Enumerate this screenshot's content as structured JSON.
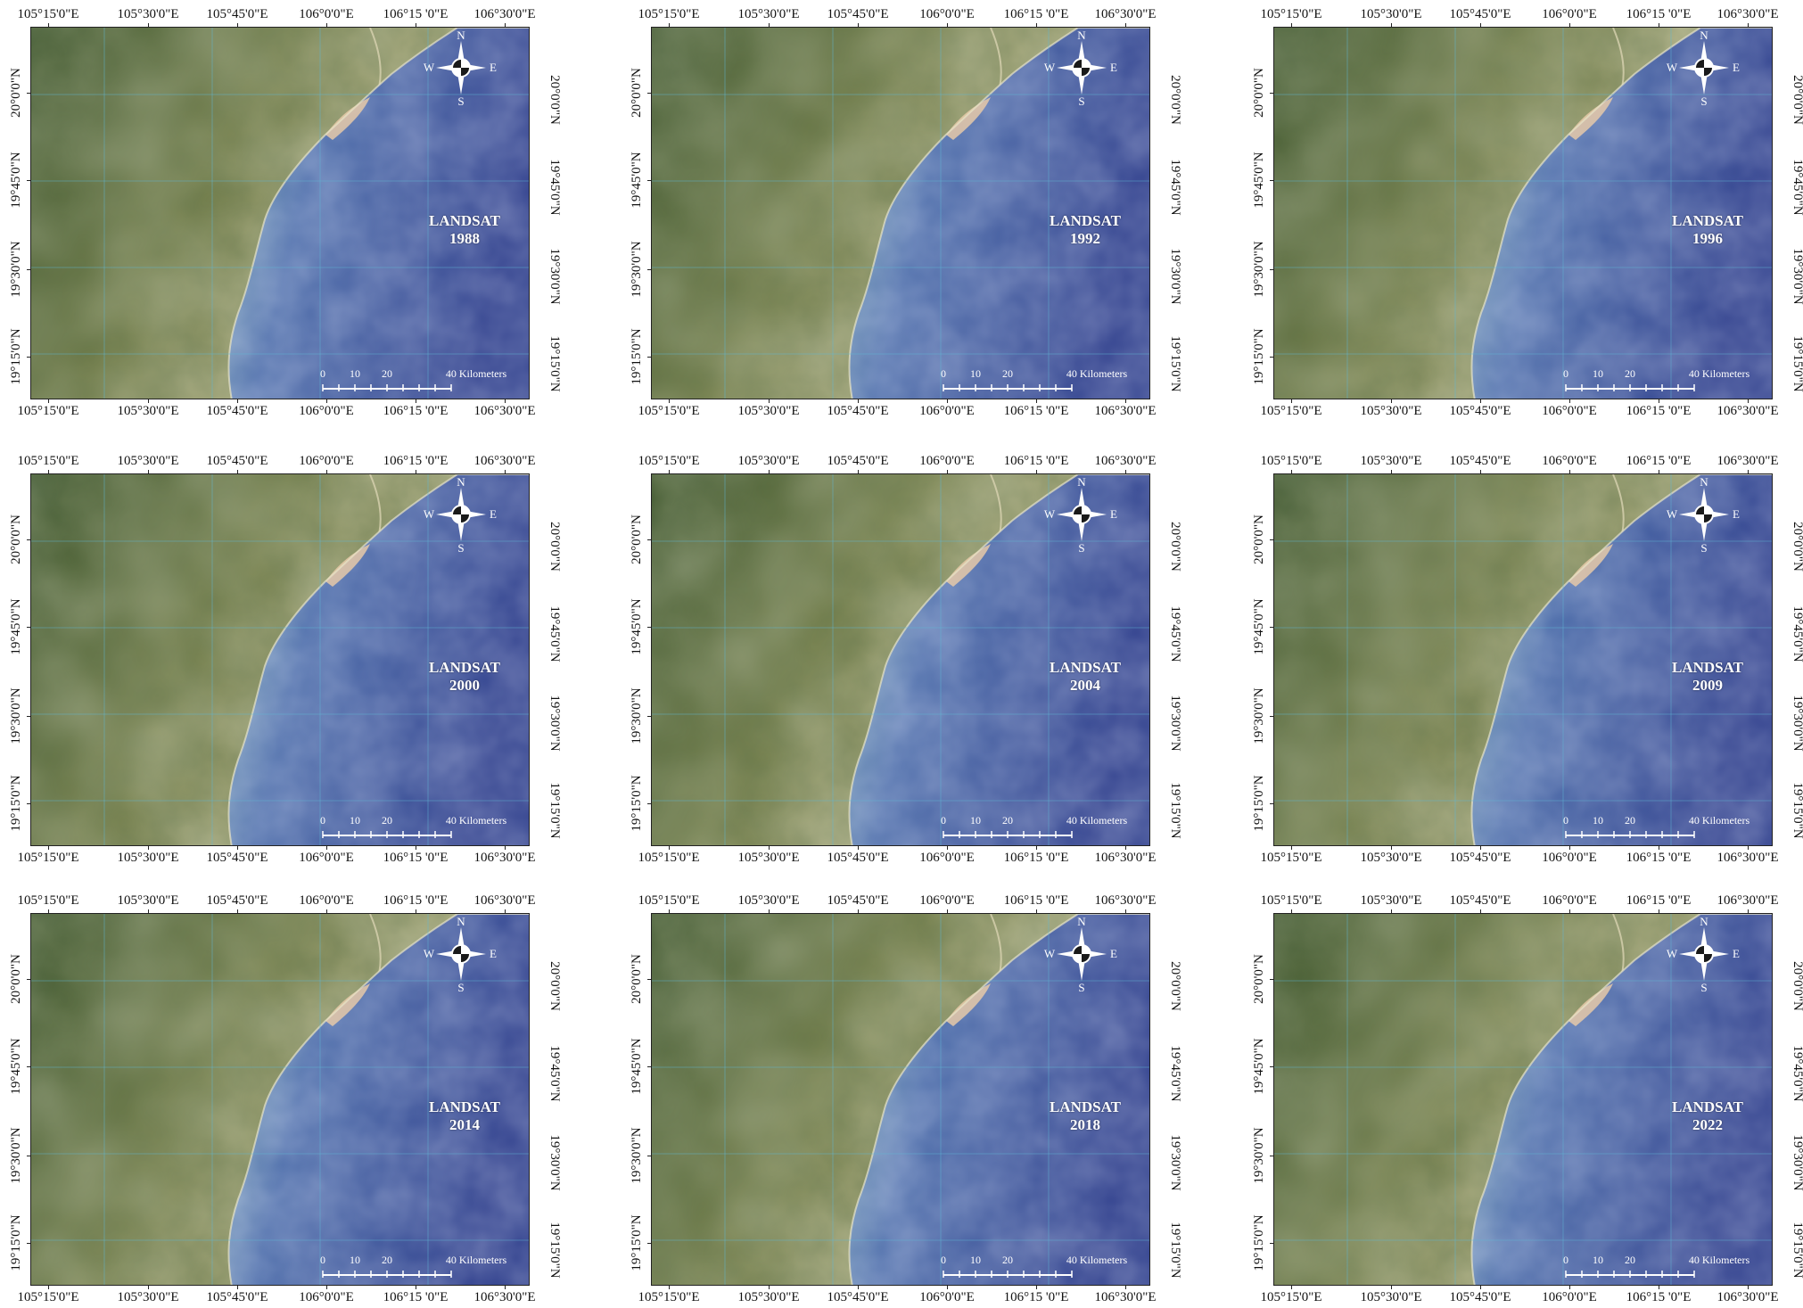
{
  "lon_labels": [
    "105°15'0\"E",
    "105°30'0\"E",
    "105°45'0\"E",
    "106°0'0\"E",
    "106°15 '0\"E",
    "106°30'0\"E"
  ],
  "lat_labels": [
    "20°0'0\"N",
    "19°45'0\"N",
    "19°30'0\"N",
    "19°15'0\"N"
  ],
  "compass": {
    "n": "N",
    "s": "S",
    "e": "E",
    "w": "W"
  },
  "scale": {
    "ticks": [
      "0",
      "10",
      "20"
    ],
    "end_label": "40 Kilometers"
  },
  "panels": [
    {
      "sensor": "LANDSAT",
      "year": "1988"
    },
    {
      "sensor": "LANDSAT",
      "year": "1992"
    },
    {
      "sensor": "LANDSAT",
      "year": "1996"
    },
    {
      "sensor": "LANDSAT",
      "year": "2000"
    },
    {
      "sensor": "LANDSAT",
      "year": "2004"
    },
    {
      "sensor": "LANDSAT",
      "year": "2009"
    },
    {
      "sensor": "LANDSAT",
      "year": "2014"
    },
    {
      "sensor": "LANDSAT",
      "year": "2018"
    },
    {
      "sensor": "LANDSAT",
      "year": "2022"
    }
  ],
  "colors": {
    "land_dark": "#2f4a22",
    "land_mid": "#6f7a45",
    "land_light": "#b7b58a",
    "coast_light": "#9cc3c8",
    "sea_mid": "#4f6fab",
    "sea_deep": "#2f3f8c",
    "grid_line": "#5fb8d6"
  }
}
